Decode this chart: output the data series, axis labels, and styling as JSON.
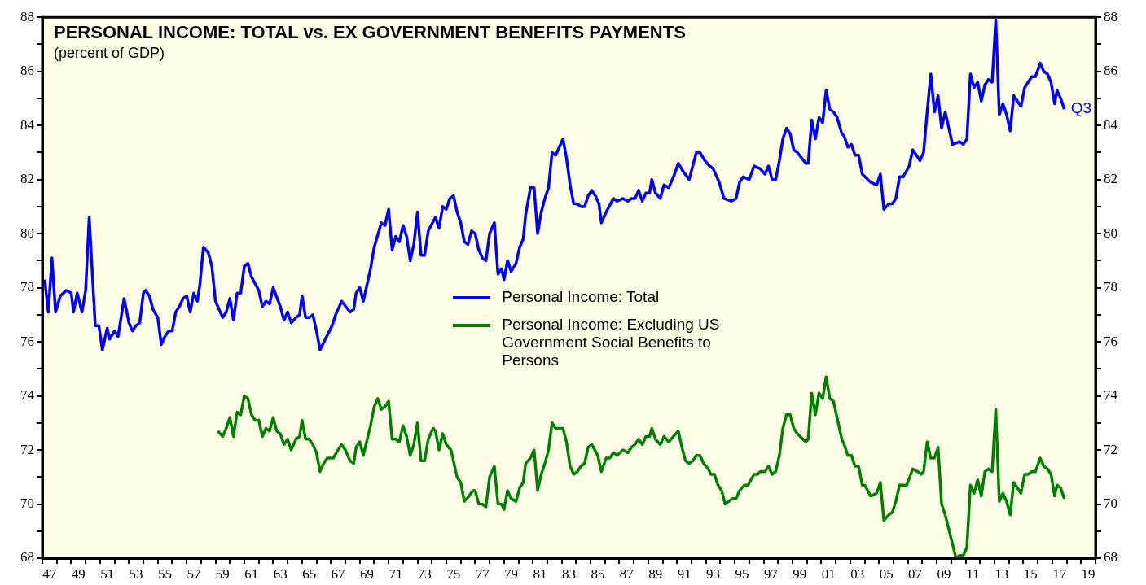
{
  "chart_data": {
    "type": "line",
    "title": "PERSONAL INCOME: TOTAL vs. EX GOVERNMENT BENEFITS PAYMENTS",
    "subtitle": "(percent of GDP)",
    "xlim": [
      "1947",
      "2020"
    ],
    "xticks": [
      {
        "value": "1947",
        "label": null
      },
      {
        "value": "1947-07",
        "label": "47"
      },
      {
        "value": "1948",
        "label": null
      },
      {
        "value": "1949",
        "label": null
      },
      {
        "value": "1949-07",
        "label": "49"
      },
      {
        "value": "1950",
        "label": null
      },
      {
        "value": "1951",
        "label": null
      },
      {
        "value": "1951-07",
        "label": "51"
      },
      {
        "value": "1952",
        "label": null
      },
      {
        "value": "1953",
        "label": null
      },
      {
        "value": "1953-07",
        "label": "53"
      },
      {
        "value": "1954",
        "label": null
      },
      {
        "value": "1955",
        "label": null
      },
      {
        "value": "1955-07",
        "label": "55"
      },
      {
        "value": "1956",
        "label": null
      },
      {
        "value": "1957",
        "label": null
      },
      {
        "value": "1957-07",
        "label": "57"
      },
      {
        "value": "1958",
        "label": null
      },
      {
        "value": "1959",
        "label": null
      },
      {
        "value": "1959-07",
        "label": "59"
      },
      {
        "value": "1960",
        "label": null
      },
      {
        "value": "1961",
        "label": null
      },
      {
        "value": "1961-07",
        "label": "61"
      },
      {
        "value": "1962",
        "label": null
      },
      {
        "value": "1963",
        "label": null
      },
      {
        "value": "1963-07",
        "label": "63"
      },
      {
        "value": "1964",
        "label": null
      },
      {
        "value": "1965",
        "label": null
      },
      {
        "value": "1965-07",
        "label": "65"
      },
      {
        "value": "1966",
        "label": null
      },
      {
        "value": "1967",
        "label": null
      },
      {
        "value": "1967-07",
        "label": "67"
      },
      {
        "value": "1968",
        "label": null
      },
      {
        "value": "1969",
        "label": null
      },
      {
        "value": "1969-07",
        "label": "69"
      },
      {
        "value": "1970",
        "label": null
      },
      {
        "value": "1971",
        "label": null
      },
      {
        "value": "1971-07",
        "label": "71"
      },
      {
        "value": "1972",
        "label": null
      },
      {
        "value": "1973",
        "label": null
      },
      {
        "value": "1973-07",
        "label": "73"
      },
      {
        "value": "1974",
        "label": null
      },
      {
        "value": "1975",
        "label": null
      },
      {
        "value": "1975-07",
        "label": "75"
      },
      {
        "value": "1976",
        "label": null
      },
      {
        "value": "1977",
        "label": null
      },
      {
        "value": "1977-07",
        "label": "77"
      },
      {
        "value": "1978",
        "label": null
      },
      {
        "value": "1979",
        "label": null
      },
      {
        "value": "1979-07",
        "label": "79"
      },
      {
        "value": "1980",
        "label": null
      },
      {
        "value": "1981",
        "label": null
      },
      {
        "value": "1981-07",
        "label": "81"
      },
      {
        "value": "1982",
        "label": null
      },
      {
        "value": "1983",
        "label": null
      },
      {
        "value": "1983-07",
        "label": "83"
      },
      {
        "value": "1984",
        "label": null
      },
      {
        "value": "1985",
        "label": null
      },
      {
        "value": "1985-07",
        "label": "85"
      },
      {
        "value": "1986",
        "label": null
      },
      {
        "value": "1987",
        "label": null
      },
      {
        "value": "1987-07",
        "label": "87"
      },
      {
        "value": "1988",
        "label": null
      },
      {
        "value": "1989",
        "label": null
      },
      {
        "value": "1989-07",
        "label": "89"
      },
      {
        "value": "1990",
        "label": null
      },
      {
        "value": "1991",
        "label": null
      },
      {
        "value": "1991-07",
        "label": "91"
      },
      {
        "value": "1992",
        "label": null
      },
      {
        "value": "1993",
        "label": null
      },
      {
        "value": "1993-07",
        "label": "93"
      },
      {
        "value": "1994",
        "label": null
      },
      {
        "value": "1995",
        "label": null
      },
      {
        "value": "1995-07",
        "label": "95"
      },
      {
        "value": "1996",
        "label": null
      },
      {
        "value": "1997",
        "label": null
      },
      {
        "value": "1997-07",
        "label": "97"
      },
      {
        "value": "1998",
        "label": null
      },
      {
        "value": "1999",
        "label": null
      },
      {
        "value": "1999-07",
        "label": "99"
      },
      {
        "value": "2000",
        "label": null
      },
      {
        "value": "2001",
        "label": null
      },
      {
        "value": "2001-07",
        "label": "01"
      },
      {
        "value": "2002",
        "label": null
      },
      {
        "value": "2003",
        "label": null
      },
      {
        "value": "2003-07",
        "label": "03"
      },
      {
        "value": "2004",
        "label": null
      },
      {
        "value": "2005",
        "label": null
      },
      {
        "value": "2005-07",
        "label": "05"
      },
      {
        "value": "2006",
        "label": null
      },
      {
        "value": "2007",
        "label": null
      },
      {
        "value": "2007-07",
        "label": "07"
      },
      {
        "value": "2008",
        "label": null
      },
      {
        "value": "2009",
        "label": null
      },
      {
        "value": "2009-07",
        "label": "09"
      },
      {
        "value": "2010",
        "label": null
      },
      {
        "value": "2011",
        "label": null
      },
      {
        "value": "2011-07",
        "label": "11"
      },
      {
        "value": "2012",
        "label": null
      },
      {
        "value": "2013",
        "label": null
      },
      {
        "value": "2013-07",
        "label": "13"
      },
      {
        "value": "2014",
        "label": null
      },
      {
        "value": "2015",
        "label": null
      },
      {
        "value": "2015-07",
        "label": "15"
      },
      {
        "value": "2016",
        "label": null
      },
      {
        "value": "2017",
        "label": null
      },
      {
        "value": "2017-07",
        "label": "17"
      },
      {
        "value": "2018",
        "label": null
      },
      {
        "value": "2019",
        "label": null
      },
      {
        "value": "2019-07",
        "label": "19"
      },
      {
        "value": "2020",
        "label": null
      }
    ],
    "ylim": [
      68,
      88
    ],
    "yticks": [
      68,
      {
        "value": 69,
        "label": null
      },
      70,
      {
        "value": 71,
        "label": null
      },
      72,
      {
        "value": 73,
        "label": null
      },
      74,
      {
        "value": 75,
        "label": null
      },
      76,
      {
        "value": 77,
        "label": null
      },
      78,
      {
        "value": 79,
        "label": null
      },
      80,
      {
        "value": 81,
        "label": null
      },
      82,
      {
        "value": 83,
        "label": null
      },
      84,
      {
        "value": 85,
        "label": null
      },
      86,
      {
        "value": 87,
        "label": null
      },
      88
    ],
    "y2lim": [
      68,
      88
    ],
    "y2ticks": [
      68,
      {
        "value": 69,
        "label": null
      },
      70,
      {
        "value": 71,
        "label": null
      },
      72,
      {
        "value": 73,
        "label": null
      },
      74,
      {
        "value": 75,
        "label": null
      },
      76,
      {
        "value": 77,
        "label": null
      },
      78,
      {
        "value": 79,
        "label": null
      },
      80,
      {
        "value": 81,
        "label": null
      },
      82,
      {
        "value": 83,
        "label": null
      },
      84,
      {
        "value": 85,
        "label": null
      },
      86,
      {
        "value": 87,
        "label": null
      },
      88
    ],
    "grid": false,
    "legend": "center",
    "annotations": [
      {
        "text": "Q3",
        "x": "2017-11",
        "y": 84.6
      }
    ],
    "series": [
      {
        "name": "Personal Income: Total",
        "color": "#0000ff",
        "x": [
          "1947-03",
          "1947-06",
          "1947-09",
          "1947-12",
          "1948-04",
          "1948-09",
          "1949-01",
          "1949-03",
          "1949-06",
          "1949-10",
          "1950-01",
          "1950-04",
          "1950-09",
          "1950-12",
          "1951-03",
          "1951-07",
          "1951-09",
          "1952-01",
          "1952-04",
          "1952-09",
          "1953-01",
          "1953-04",
          "1953-07",
          "1953-10",
          "1954-01",
          "1954-03",
          "1954-06",
          "1954-09",
          "1955-01",
          "1955-04",
          "1955-07",
          "1955-10",
          "1956-01",
          "1956-04",
          "1956-07",
          "1956-10",
          "1957-01",
          "1957-04",
          "1957-07",
          "1957-10",
          "1957-12",
          "1958-03",
          "1958-07",
          "1958-10",
          "1959-01",
          "1959-07",
          "1959-10",
          "1960-01",
          "1960-04",
          "1960-07",
          "1960-10",
          "1961-01",
          "1961-04",
          "1961-07",
          "1962-01",
          "1962-04",
          "1962-07",
          "1962-10",
          "1963-01",
          "1963-07",
          "1963-10",
          "1964-01",
          "1964-04",
          "1964-08",
          "1964-11",
          "1965-01",
          "1965-04",
          "1965-07",
          "1965-10",
          "1966-01",
          "1966-04",
          "1967-02",
          "1967-05",
          "1967-10",
          "1968-05",
          "1968-08",
          "1968-10",
          "1969-01",
          "1969-04",
          "1969-10",
          "1970-01",
          "1970-07",
          "1970-10",
          "1971-01",
          "1971-04",
          "1971-07",
          "1971-10",
          "1972-01",
          "1972-04",
          "1972-07",
          "1972-10",
          "1973-01",
          "1973-04",
          "1973-07",
          "1973-10",
          "1974-04",
          "1974-07",
          "1974-10",
          "1975-01",
          "1975-04",
          "1975-07",
          "1975-10",
          "1976-01",
          "1976-04",
          "1976-07",
          "1976-10",
          "1977-01",
          "1977-04",
          "1977-07",
          "1977-10",
          "1978-01",
          "1978-05",
          "1978-08",
          "1978-11",
          "1979-01",
          "1979-04",
          "1979-07",
          "1979-11",
          "1980-02",
          "1980-05",
          "1980-07",
          "1980-11",
          "1981-02",
          "1981-05",
          "1981-08",
          "1981-11",
          "1982-02",
          "1982-05",
          "1982-08",
          "1982-11",
          "1983-02",
          "1983-05",
          "1983-08",
          "1983-11",
          "1984-02",
          "1984-05",
          "1984-08",
          "1984-11",
          "1985-02",
          "1985-05",
          "1985-08",
          "1985-10",
          "1986-02",
          "1986-08",
          "1986-11",
          "1987-04",
          "1987-08",
          "1987-11",
          "1988-02",
          "1988-05",
          "1988-08",
          "1988-11",
          "1989-02",
          "1989-04",
          "1989-07",
          "1989-11",
          "1990-02",
          "1990-06",
          "1990-10",
          "1991-02",
          "1991-06",
          "1991-11",
          "1992-05",
          "1992-08",
          "1992-12",
          "1993-04",
          "1993-07",
          "1993-12",
          "1994-04",
          "1994-10",
          "1995-02",
          "1995-05",
          "1995-08",
          "1996-01",
          "1996-05",
          "1996-10",
          "1997-02",
          "1997-05",
          "1997-08",
          "1997-11",
          "1998-02",
          "1998-05",
          "1998-08",
          "1998-11",
          "1999-02",
          "1999-05",
          "1999-12",
          "2000-02",
          "2000-05",
          "2000-08",
          "2000-11",
          "2001-02",
          "2001-05",
          "2001-08",
          "2001-11",
          "2002-02",
          "2002-06",
          "2002-08",
          "2002-11",
          "2003-02",
          "2003-05",
          "2003-08",
          "2003-11",
          "2004-06",
          "2004-11",
          "2005-02",
          "2005-05",
          "2005-09",
          "2005-12",
          "2006-03",
          "2006-06",
          "2006-09",
          "2007-02",
          "2007-05",
          "2007-11",
          "2008-02",
          "2008-05",
          "2008-08",
          "2008-11",
          "2009-02",
          "2009-05",
          "2009-08",
          "2010-02",
          "2010-08",
          "2010-11",
          "2011-02",
          "2011-05",
          "2011-08",
          "2011-11",
          "2012-02",
          "2012-05",
          "2012-08",
          "2012-11",
          "2013-02",
          "2013-05",
          "2013-08",
          "2013-11",
          "2014-02",
          "2014-05",
          "2014-08",
          "2014-11",
          "2015-02",
          "2015-05",
          "2015-08",
          "2015-11",
          "2016-03",
          "2016-06",
          "2016-09",
          "2016-12",
          "2017-03",
          "2017-05",
          "2017-08",
          "2017-11"
        ],
        "values": [
          78.3,
          77.1,
          79.1,
          77.1,
          77.7,
          77.9,
          77.8,
          77.1,
          77.8,
          77.1,
          77.9,
          80.6,
          76.6,
          76.6,
          75.7,
          76.5,
          76.1,
          76.4,
          76.2,
          77.6,
          76.7,
          76.4,
          76.6,
          76.7,
          77.8,
          77.9,
          77.7,
          77.2,
          76.9,
          75.9,
          76.2,
          76.4,
          76.4,
          77.1,
          77.3,
          77.6,
          77.7,
          77.1,
          77.8,
          77.5,
          78.1,
          79.5,
          79.3,
          78.8,
          77.5,
          76.9,
          77.1,
          77.6,
          76.8,
          77.8,
          77.8,
          78.8,
          78.9,
          78.4,
          77.9,
          77.3,
          77.5,
          77.4,
          78.0,
          77.3,
          76.8,
          77.1,
          76.7,
          76.9,
          77.0,
          77.7,
          76.9,
          76.9,
          77.0,
          76.4,
          75.7,
          76.6,
          77.0,
          77.5,
          77.1,
          77.2,
          77.8,
          78.0,
          77.5,
          78.7,
          79.5,
          80.4,
          80.3,
          80.9,
          79.4,
          79.9,
          79.7,
          80.3,
          79.9,
          79.0,
          79.6,
          80.8,
          79.2,
          79.2,
          80.1,
          80.6,
          80.2,
          81.0,
          80.9,
          81.3,
          81.4,
          80.8,
          80.4,
          79.7,
          79.6,
          80.1,
          80.0,
          79.4,
          79.1,
          79.0,
          80.0,
          80.4,
          78.5,
          78.7,
          78.3,
          79.0,
          78.6,
          78.9,
          79.5,
          79.8,
          80.7,
          81.7,
          81.7,
          80.0,
          80.8,
          81.3,
          81.7,
          83.0,
          82.9,
          83.2,
          83.5,
          82.8,
          81.8,
          81.1,
          81.1,
          81.0,
          81.0,
          81.4,
          81.6,
          81.4,
          81.1,
          80.4,
          80.8,
          81.3,
          81.2,
          81.3,
          81.2,
          81.3,
          81.3,
          81.6,
          81.2,
          81.5,
          81.5,
          82.0,
          81.5,
          81.3,
          81.8,
          81.7,
          82.1,
          82.6,
          82.3,
          82.0,
          83.0,
          83.0,
          82.7,
          82.5,
          82.4,
          81.9,
          81.3,
          81.2,
          81.3,
          81.9,
          82.1,
          82.0,
          82.5,
          82.4,
          82.2,
          82.5,
          82.0,
          82.0,
          82.7,
          83.5,
          83.9,
          83.7,
          83.1,
          83.0,
          82.6,
          82.6,
          84.2,
          83.5,
          84.3,
          84.1,
          85.3,
          84.6,
          84.5,
          84.3,
          83.7,
          83.6,
          83.2,
          83.3,
          82.9,
          82.9,
          82.2,
          81.9,
          81.8,
          82.2,
          80.9,
          81.1,
          81.1,
          81.3,
          82.1,
          82.1,
          82.5,
          83.1,
          82.7,
          83.0,
          84.5,
          85.9,
          84.5,
          85.1,
          83.9,
          84.5,
          83.3,
          83.4,
          83.3,
          83.5,
          85.9,
          85.4,
          85.6,
          84.9,
          85.5,
          85.7,
          85.6,
          87.9,
          84.4,
          84.8,
          84.4,
          83.8,
          85.1,
          84.9,
          84.7,
          85.4,
          85.6,
          85.8,
          85.8,
          86.3,
          86.0,
          85.9,
          85.6,
          84.8,
          85.3,
          85.0,
          84.6
        ]
      },
      {
        "name": "Personal Income: Excluding US Government Social Benefits to Persons",
        "color": "#008000",
        "x": [
          "1959-03",
          "1959-07",
          "1959-10",
          "1960-01",
          "1960-04",
          "1960-07",
          "1960-10",
          "1961-01",
          "1961-04",
          "1961-07",
          "1961-10",
          "1962-01",
          "1962-04",
          "1962-07",
          "1962-10",
          "1963-01",
          "1963-04",
          "1963-07",
          "1963-10",
          "1964-01",
          "1964-04",
          "1964-08",
          "1964-11",
          "1965-01",
          "1965-04",
          "1965-07",
          "1965-10",
          "1966-01",
          "1966-04",
          "1966-07",
          "1966-10",
          "1967-03",
          "1967-07",
          "1967-10",
          "1968-01",
          "1968-05",
          "1968-08",
          "1968-10",
          "1969-01",
          "1969-04",
          "1969-10",
          "1970-01",
          "1970-04",
          "1970-07",
          "1970-10",
          "1971-01",
          "1971-04",
          "1971-07",
          "1971-10",
          "1972-01",
          "1972-04",
          "1972-07",
          "1972-10",
          "1973-01",
          "1973-04",
          "1973-07",
          "1973-10",
          "1974-02",
          "1974-04",
          "1974-07",
          "1974-10",
          "1975-01",
          "1975-05",
          "1975-07",
          "1975-10",
          "1976-01",
          "1976-04",
          "1976-08",
          "1976-11",
          "1977-01",
          "1977-04",
          "1977-07",
          "1977-10",
          "1978-01",
          "1978-05",
          "1978-08",
          "1978-11",
          "1979-01",
          "1979-04",
          "1979-07",
          "1979-11",
          "1980-02",
          "1980-05",
          "1980-07",
          "1980-11",
          "1981-02",
          "1981-05",
          "1981-08",
          "1981-11",
          "1982-02",
          "1982-05",
          "1982-08",
          "1982-11",
          "1983-02",
          "1983-05",
          "1983-08",
          "1983-11",
          "1984-02",
          "1984-05",
          "1984-08",
          "1984-11",
          "1985-02",
          "1985-07",
          "1985-10",
          "1986-02",
          "1986-05",
          "1986-08",
          "1986-11",
          "1987-04",
          "1987-08",
          "1987-11",
          "1988-02",
          "1988-05",
          "1988-08",
          "1988-11",
          "1989-02",
          "1989-04",
          "1989-07",
          "1989-11",
          "1990-02",
          "1990-06",
          "1990-10",
          "1991-02",
          "1991-05",
          "1991-08",
          "1991-11",
          "1992-02",
          "1992-05",
          "1992-08",
          "1992-11",
          "1993-03",
          "1993-05",
          "1993-08",
          "1993-11",
          "1994-02",
          "1994-05",
          "1994-08",
          "1994-11",
          "1995-02",
          "1995-05",
          "1995-09",
          "1995-12",
          "1996-05",
          "1996-08",
          "1996-10",
          "1997-02",
          "1997-05",
          "1997-08",
          "1997-11",
          "1998-02",
          "1998-05",
          "1998-08",
          "1998-11",
          "1999-02",
          "1999-05",
          "1999-12",
          "2000-02",
          "2000-05",
          "2000-08",
          "2000-11",
          "2001-02",
          "2001-05",
          "2001-08",
          "2001-11",
          "2002-02",
          "2002-06",
          "2002-08",
          "2002-11",
          "2003-02",
          "2003-05",
          "2003-08",
          "2003-11",
          "2004-01",
          "2004-06",
          "2004-11",
          "2005-02",
          "2005-05",
          "2005-09",
          "2005-12",
          "2006-03",
          "2006-06",
          "2006-09",
          "2006-12",
          "2007-05",
          "2007-09",
          "2007-12",
          "2008-02",
          "2008-05",
          "2008-08",
          "2008-11",
          "2009-02",
          "2009-05",
          "2009-08",
          "2010-05",
          "2010-08",
          "2010-11",
          "2011-02",
          "2011-05",
          "2011-08",
          "2011-11",
          "2012-02",
          "2012-05",
          "2012-08",
          "2012-11",
          "2013-02",
          "2013-05",
          "2013-08",
          "2013-11",
          "2014-02",
          "2014-05",
          "2014-08",
          "2014-11",
          "2015-02",
          "2015-05",
          "2015-08",
          "2015-11",
          "2016-03",
          "2016-06",
          "2016-09",
          "2016-12",
          "2017-03",
          "2017-05",
          "2017-08",
          "2017-11"
        ],
        "values": [
          72.7,
          72.5,
          72.8,
          73.2,
          72.5,
          73.4,
          73.3,
          74.0,
          73.9,
          73.3,
          73.1,
          73.1,
          72.5,
          72.8,
          72.7,
          73.2,
          72.7,
          72.6,
          72.2,
          72.4,
          72.0,
          72.4,
          72.5,
          73.1,
          72.4,
          72.4,
          72.2,
          71.9,
          71.2,
          71.5,
          71.7,
          71.7,
          72.0,
          72.2,
          72.0,
          71.6,
          71.5,
          72.1,
          72.3,
          71.8,
          72.9,
          73.6,
          73.9,
          73.5,
          73.6,
          73.8,
          72.4,
          72.4,
          72.3,
          72.9,
          72.5,
          71.8,
          72.2,
          73.0,
          71.6,
          71.6,
          72.4,
          72.8,
          72.7,
          72.0,
          72.6,
          72.2,
          72.0,
          71.6,
          71.0,
          70.8,
          70.1,
          70.3,
          70.5,
          70.5,
          70.0,
          70.0,
          69.9,
          71.0,
          71.4,
          70.0,
          70.0,
          69.8,
          70.5,
          70.2,
          70.1,
          70.6,
          70.8,
          71.5,
          71.7,
          72.0,
          70.5,
          71.1,
          71.5,
          72.0,
          73.0,
          72.8,
          72.8,
          72.8,
          72.3,
          71.4,
          71.1,
          71.2,
          71.4,
          71.5,
          72.1,
          72.2,
          71.8,
          71.2,
          71.7,
          71.7,
          71.9,
          71.8,
          72.0,
          71.9,
          72.1,
          72.2,
          72.4,
          72.2,
          72.5,
          72.5,
          72.8,
          72.4,
          72.2,
          72.5,
          72.3,
          72.5,
          72.7,
          72.1,
          71.6,
          71.5,
          71.6,
          71.8,
          71.8,
          71.5,
          71.3,
          71.1,
          71.1,
          70.7,
          70.5,
          70.0,
          70.1,
          70.2,
          70.2,
          70.5,
          70.7,
          70.7,
          71.1,
          71.1,
          71.2,
          71.2,
          71.4,
          71.1,
          71.2,
          71.8,
          72.8,
          73.3,
          73.3,
          72.8,
          72.6,
          72.3,
          72.4,
          74.1,
          73.3,
          74.1,
          73.9,
          74.7,
          73.9,
          73.8,
          73.2,
          72.4,
          72.2,
          71.8,
          71.8,
          71.4,
          71.4,
          70.7,
          70.7,
          70.3,
          70.4,
          70.8,
          69.4,
          69.6,
          69.7,
          70.1,
          70.7,
          70.7,
          70.7,
          71.3,
          71.2,
          71.1,
          71.2,
          72.3,
          71.7,
          71.7,
          72.1,
          70.0,
          69.6,
          68.0,
          68.1,
          68.1,
          68.4,
          70.7,
          70.4,
          70.9,
          70.3,
          71.2,
          71.3,
          71.2,
          73.5,
          70.1,
          70.4,
          70.1,
          69.6,
          70.8,
          70.6,
          70.4,
          71.1,
          71.1,
          71.2,
          71.2,
          71.7,
          71.4,
          71.3,
          71.1,
          70.3,
          70.7,
          70.6,
          70.2
        ]
      }
    ]
  }
}
